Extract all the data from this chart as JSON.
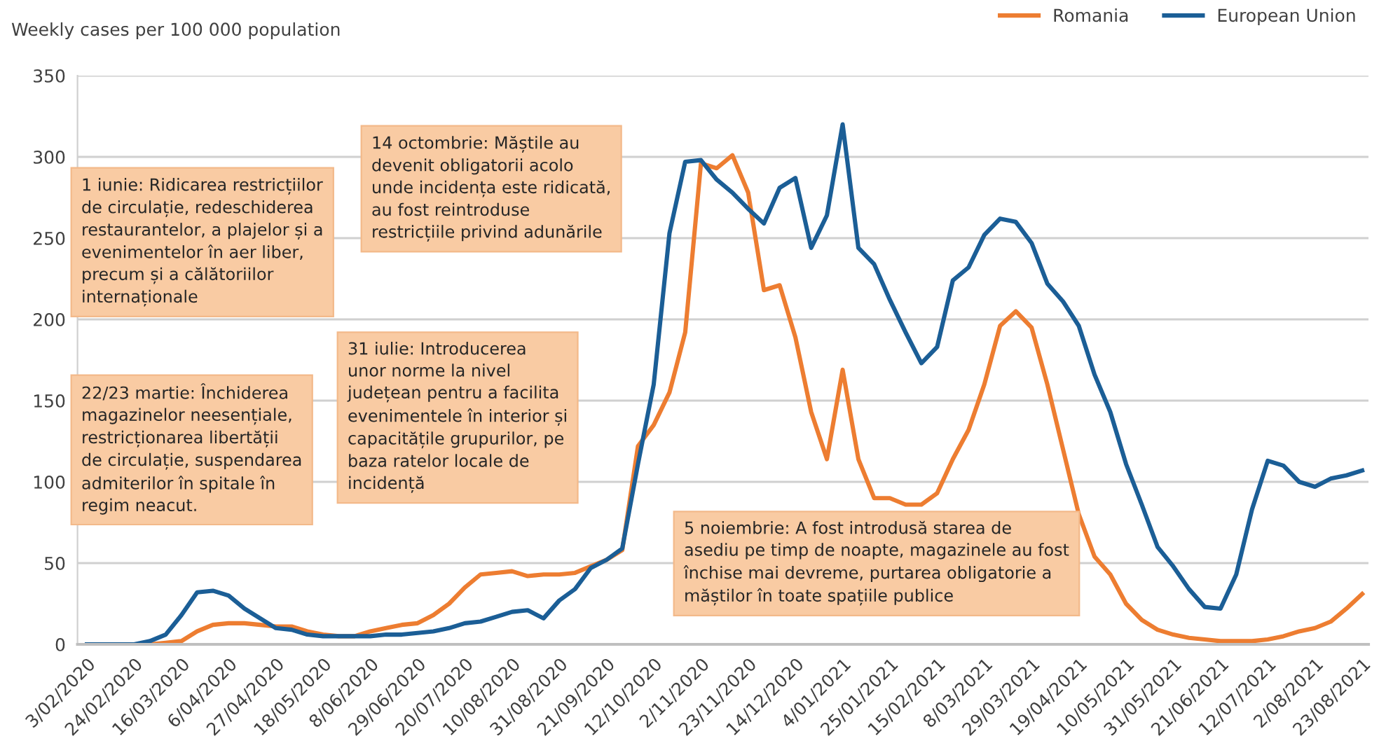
{
  "chart_data": {
    "type": "line",
    "ylabel": "Weekly cases per 100 000 population",
    "categories": [
      "3/02/2020",
      null,
      null,
      "24/02/2020",
      null,
      null,
      "16/03/2020",
      null,
      null,
      "6/04/2020",
      null,
      null,
      "27/04/2020",
      null,
      null,
      "18/05/2020",
      null,
      null,
      "8/06/2020",
      null,
      null,
      "29/06/2020",
      null,
      null,
      "20/07/2020",
      null,
      null,
      "10/08/2020",
      null,
      null,
      "31/08/2020",
      null,
      null,
      "21/09/2020",
      null,
      null,
      "12/10/2020",
      null,
      null,
      "2/11/2020",
      null,
      null,
      "23/11/2020",
      null,
      null,
      "14/12/2020",
      null,
      null,
      "4/01/2021",
      null,
      null,
      "25/01/2021",
      null,
      null,
      "15/02/2021",
      null,
      null,
      "8/03/2021",
      null,
      null,
      "29/03/2021",
      null,
      null,
      "19/04/2021",
      null,
      null,
      "10/05/2021",
      null,
      null,
      "31/05/2021",
      null,
      null,
      "21/06/2021",
      null,
      null,
      "12/07/2021",
      null,
      null,
      "2/08/2021",
      null,
      null,
      "23/08/2021"
    ],
    "series": [
      {
        "name": "Romania",
        "color": "#ed7d31",
        "values": [
          null,
          null,
          null,
          null,
          0,
          1,
          2,
          8,
          12,
          13,
          13,
          12,
          11,
          11,
          8,
          6,
          5,
          5,
          8,
          10,
          12,
          13,
          18,
          25,
          35,
          43,
          44,
          45,
          42,
          43,
          43,
          44,
          48,
          52,
          58,
          122,
          135,
          155,
          192,
          296,
          293,
          301,
          278,
          218,
          221,
          189,
          143,
          114,
          169,
          114,
          90,
          90,
          86,
          86,
          93,
          114,
          132,
          160,
          196,
          205,
          195,
          160,
          120,
          80,
          54,
          43,
          25,
          15,
          9,
          6,
          4,
          3,
          2,
          2,
          2,
          3,
          5,
          8,
          10,
          14,
          22,
          31
        ]
      },
      {
        "name": "European Union",
        "color": "#1b5e96",
        "values": [
          0,
          0,
          0,
          0,
          2,
          6,
          18,
          32,
          33,
          30,
          22,
          16,
          10,
          9,
          6,
          5,
          5,
          5,
          5,
          6,
          6,
          7,
          8,
          10,
          13,
          14,
          17,
          20,
          21,
          16,
          27,
          34,
          47,
          52,
          59,
          111,
          160,
          253,
          297,
          298,
          286,
          278,
          268,
          259,
          281,
          287,
          244,
          264,
          320,
          244,
          234,
          212,
          192,
          173,
          183,
          224,
          232,
          252,
          262,
          260,
          247,
          222,
          211,
          196,
          166,
          143,
          111,
          86,
          60,
          48,
          34,
          23,
          22,
          43,
          83,
          113,
          110,
          100,
          97,
          102,
          104,
          107
        ]
      }
    ],
    "ylim": [
      0,
      350
    ],
    "yticks": [
      0,
      50,
      100,
      150,
      200,
      250,
      300,
      350
    ],
    "grid": "y",
    "legend": "top right",
    "line_style": "solid",
    "marker": "none",
    "annotations": [
      "22/23 martie: Închiderea\nmagazinelor neesențiale,\nrestricționarea libertății\nde circulație, suspendarea\nadmiterilor în spitale în\nregim neacut.",
      "1 iunie: Ridicarea restricțiilor\nde circulație, redeschiderea\nrestaurantelor, a plajelor și a\nevenimentelor în aer liber,\nprecum și a călătoriilor\ninternaționale",
      "31 iulie: Introducerea\nunor norme la nivel\njudețean pentru a facilita\nevenimentele în interior și\ncapacitățile grupurilor, pe\nbaza ratelor locale de\nincidență",
      "14 octombrie: Măștile au\ndevenit obligatorii acolo\nunde incidența este ridicată,\nau fost reintroduse\nrestricțiile privind adunările",
      "5 noiembrie: A fost introdusă starea de\nasediu pe timp de noapte, magazinele au fost\nînchise mai devreme, purtarea obligatorie a\nmăștilor în toate spațiile publice"
    ]
  }
}
